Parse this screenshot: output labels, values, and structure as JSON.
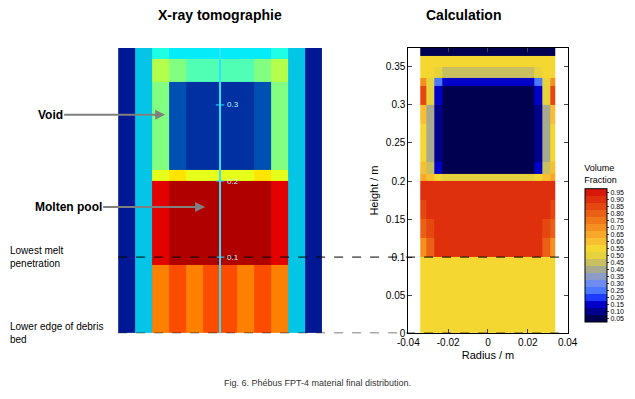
{
  "chart_data": [
    {
      "type": "image",
      "title": "X-ray tomographie",
      "tick_labels": false,
      "y": [
        0,
        0.09,
        0.2,
        0.215,
        0.33,
        0.36,
        0.375
      ],
      "zlim": [
        0,
        1
      ],
      "cells": [
        [
          0.05,
          0.3,
          0.75,
          0.8,
          0.75,
          0.8,
          0.8,
          0.75,
          0.8,
          0.75,
          0.3,
          0.05
        ],
        [
          0.05,
          0.3,
          0.9,
          0.95,
          0.95,
          0.95,
          0.95,
          0.95,
          0.95,
          0.9,
          0.3,
          0.05
        ],
        [
          0.05,
          0.3,
          0.6,
          0.65,
          0.6,
          0.6,
          0.6,
          0.6,
          0.65,
          0.6,
          0.3,
          0.05
        ],
        [
          0.05,
          0.3,
          0.5,
          0.15,
          0.1,
          0.1,
          0.1,
          0.1,
          0.15,
          0.5,
          0.3,
          0.05
        ],
        [
          0.05,
          0.3,
          0.55,
          0.5,
          0.45,
          0.45,
          0.45,
          0.45,
          0.5,
          0.55,
          0.3,
          0.05
        ],
        [
          0.05,
          0.3,
          0.4,
          0.35,
          0.35,
          0.35,
          0.35,
          0.35,
          0.35,
          0.4,
          0.3,
          0.05
        ]
      ],
      "scale_marks": [
        0.1,
        0.2,
        0.3
      ],
      "annotations": [
        {
          "text": [
            "Void"
          ],
          "y": 0.287
        },
        {
          "text": [
            "Molten pool"
          ],
          "y": 0.166
        },
        {
          "text": [
            "Lowest melt",
            "penetration"
          ],
          "y": 0.1,
          "line_style": "dashed"
        },
        {
          "text": [
            "Lower edge of debris",
            "bed"
          ],
          "y": 0,
          "line_style": "dashed"
        }
      ]
    },
    {
      "type": "heatmap",
      "title": "Calculation",
      "x_label": "Radius / m",
      "y_label": "Height / m",
      "grid": false,
      "xlim": [
        -0.04,
        0.04
      ],
      "xticks": [
        -0.04,
        -0.02,
        0,
        0.02,
        0.04
      ],
      "ylim": [
        0,
        0.375
      ],
      "yticks": [
        0,
        0.05,
        0.1,
        0.15,
        0.2,
        0.25,
        0.3,
        0.35
      ],
      "x": [
        -0.034,
        -0.031,
        -0.027,
        -0.023,
        -0.012,
        0,
        0.012,
        0.023,
        0.027,
        0.031,
        0.034
      ],
      "y": [
        0,
        0.1,
        0.125,
        0.15,
        0.175,
        0.2,
        0.21,
        0.225,
        0.25,
        0.275,
        0.3,
        0.325,
        0.335,
        0.35,
        0.365,
        0.375
      ],
      "cells": [
        [
          0.55,
          0.55,
          0.55,
          0.55,
          0.55,
          0.55,
          0.55,
          0.55,
          0.55,
          0.55
        ],
        [
          0.7,
          0.8,
          0.9,
          0.9,
          0.9,
          0.9,
          0.9,
          0.9,
          0.8,
          0.7
        ],
        [
          0.8,
          0.85,
          0.9,
          0.9,
          0.9,
          0.9,
          0.9,
          0.9,
          0.85,
          0.8
        ],
        [
          0.85,
          0.9,
          0.9,
          0.9,
          0.9,
          0.9,
          0.9,
          0.9,
          0.9,
          0.85
        ],
        [
          0.9,
          0.9,
          0.9,
          0.9,
          0.9,
          0.9,
          0.9,
          0.9,
          0.9,
          0.9
        ],
        [
          0.65,
          0.6,
          0.55,
          0.5,
          0.5,
          0.5,
          0.5,
          0.55,
          0.6,
          0.65
        ],
        [
          0.6,
          0.45,
          0.15,
          0.05,
          0.05,
          0.05,
          0.05,
          0.15,
          0.45,
          0.6
        ],
        [
          0.55,
          0.4,
          0.1,
          0.05,
          0.05,
          0.05,
          0.05,
          0.1,
          0.4,
          0.55
        ],
        [
          0.55,
          0.4,
          0.1,
          0.05,
          0.05,
          0.05,
          0.05,
          0.1,
          0.4,
          0.55
        ],
        [
          0.6,
          0.4,
          0.1,
          0.05,
          0.05,
          0.05,
          0.05,
          0.1,
          0.4,
          0.6
        ],
        [
          0.85,
          0.5,
          0.15,
          0.05,
          0.05,
          0.05,
          0.05,
          0.15,
          0.5,
          0.85
        ],
        [
          0.7,
          0.5,
          0.25,
          0.15,
          0.15,
          0.15,
          0.15,
          0.25,
          0.5,
          0.7
        ],
        [
          0.55,
          0.55,
          0.5,
          0.45,
          0.45,
          0.45,
          0.45,
          0.5,
          0.55,
          0.55
        ],
        [
          0.55,
          0.55,
          0.55,
          0.55,
          0.55,
          0.55,
          0.55,
          0.55,
          0.55,
          0.55
        ],
        [
          0.05,
          0.05,
          0.05,
          0.05,
          0.05,
          0.05,
          0.05,
          0.05,
          0.05,
          0.05
        ]
      ],
      "colorbar": {
        "title": [
          "Volume",
          "Fraction"
        ],
        "zlim": [
          0.025,
          0.975
        ],
        "ticks": [
          0.05,
          {
            "value": 0.1,
            "label": "0.10"
          },
          0.15,
          {
            "value": 0.2,
            "label": "0.20"
          },
          0.25,
          {
            "value": 0.3,
            "label": "0.30"
          },
          0.35,
          {
            "value": 0.4,
            "label": "0.40"
          },
          0.45,
          {
            "value": 0.5,
            "label": "0.50"
          },
          0.55,
          {
            "value": 0.6,
            "label": "0.60"
          },
          0.65,
          {
            "value": 0.7,
            "label": "0.70"
          },
          0.75,
          {
            "value": 0.8,
            "label": "0.80"
          },
          0.85,
          {
            "value": 0.9,
            "label": "0.90"
          },
          0.95
        ]
      }
    }
  ],
  "caption": "Fig. 6. Phébus FPT-4 material final distribution."
}
